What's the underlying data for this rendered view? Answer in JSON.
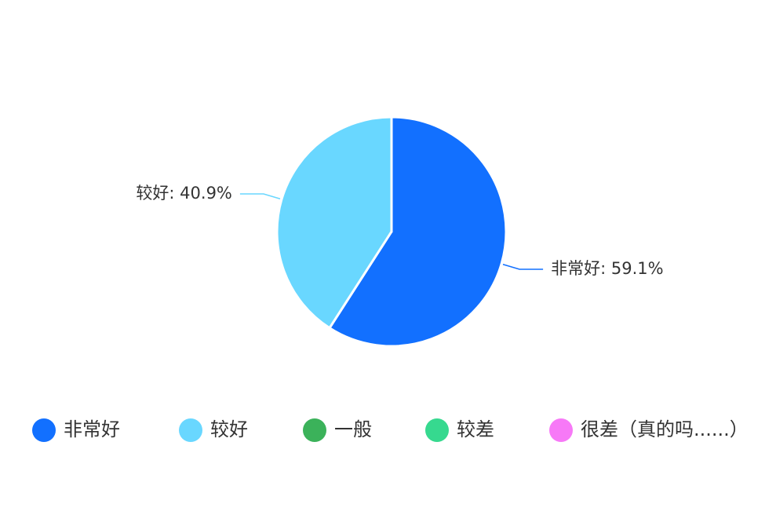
{
  "chart_data": {
    "type": "pie",
    "categories": [
      "非常好",
      "较好",
      "一般",
      "较差",
      "很差（真的吗......）"
    ],
    "values": [
      59.1,
      40.9,
      0,
      0,
      0
    ],
    "value_labels": [
      "非常好: 59.1%",
      "较好: 40.9%",
      null,
      null,
      null
    ],
    "colors": [
      "#1270ff",
      "#69d7ff",
      "#3bb25a",
      "#36d98f",
      "#f779f7"
    ],
    "legend": "bottom"
  }
}
